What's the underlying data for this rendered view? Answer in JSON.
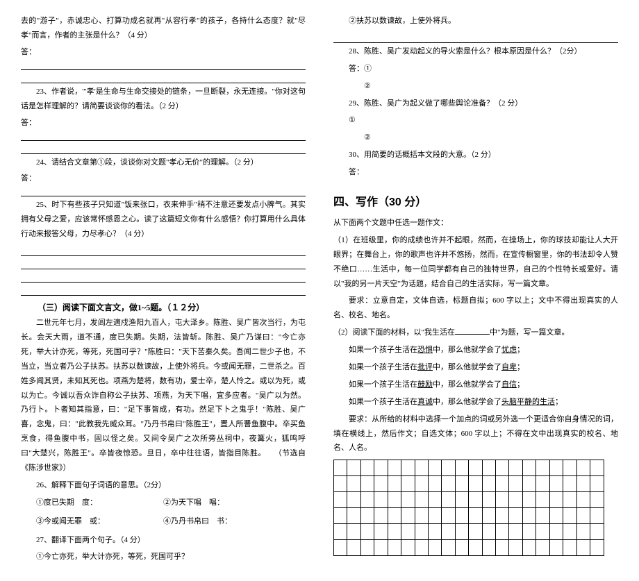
{
  "left": {
    "intro": "去的\"游子\"，赤诚忠心、打算功成名就再\"从容行孝\"的孩子，各持什么态度？就\"尽孝\"而言，作者的主张是什么？（4 分）",
    "ans_label": "答：",
    "q23": "23、作者说，\"'孝'是生命与生命交接处的链条，一旦断裂，永无连接。\"你对这句话是怎样理解的？请简要谈谈你的看法。（2 分）",
    "q24": "24、请结合文章第①段，谈谈你对文题\"孝心无价\"的理解。（2 分）",
    "q25": "25、时下有些孩子只知道\"饭来张口，衣来伸手\"稍不注意还要发点小脾气。其实拥有父母之爱，应该常怀感恩之心。读了这篇短文你有什么感悟？你打算用什么具体行动来报答父母，力尽孝心？（4 分）",
    "sec3_title": "（三）阅读下面文言文，做1~5题。（１２分）",
    "passage": "二世元年七月，发闾左適戍渔阳九百人，屯大泽乡。陈胜、吴广皆次当行，为屯长。会天大雨，道不通，度已失期。失期，法皆斩。陈胜、吴广乃谋曰：\"今亡亦死，举大计亦死，等死，死国可乎？\"陈胜曰：\"天下苦秦久矣。吾闻二世少子也，不当立，当立者乃公子扶苏。扶苏以数谏故，上使外将兵。今或闻无罪，二世杀之。百姓多闻其贤，未知其死也。项燕为楚将，数有功，爱士卒，楚人怜之。或以为死，或以为亡。今诚以吾众诈自称公子扶苏、项燕，为天下唱，宜多应者。\"吴广以为然。乃行卜。卜者知其指意，曰：\"足下事皆成，有功。然足下卜之鬼乎！\"陈胜、吴广喜，念鬼，曰：\"此教我先威众耳。\"乃丹书帛曰\"陈胜王\"，置人所罾鱼腹中。卒买鱼烹食，得鱼腹中书，固以怪之矣。又间令吴广之次所旁丛祠中，夜篝火，狐鸣呼曰\"大楚兴，陈胜王\"。卒皆夜惊恐。旦日，卒中往往语，皆指目陈胜。　　（节选自《陈涉世家》）",
    "q26": "26、解释下面句子词语的意思。（2分）",
    "q26_1": "①度已失期　度：",
    "q26_2": "②为天下唱　唱：",
    "q26_3": "③今或闻无罪　或：",
    "q26_4": "④乃丹书帛曰　书：",
    "q27": "27、翻译下面两个句子。（4 分）",
    "q27_1": "①今亡亦死，举大计亦死，等死，死国可乎？"
  },
  "right": {
    "q27_2": "②扶苏以数谏故，上使外将兵。",
    "q28": "28、陈胜、吴广发动起义的导火索是什么？根本原因是什么？（2分）",
    "q28_a1": "答：① ",
    "q28_a2": "②",
    "q29": "29、陈胜、吴广为起义做了哪些舆论准备？（2 分）",
    "q29_a1": "①",
    "q29_a2": "②",
    "q30": "30、用简要的话概括本文段的大意。（2 分）",
    "q30_a": "答：",
    "big": "四、写作（30 分）",
    "intro": "从下面两个文题中任选一题作文：",
    "opt1": "（1）在班级里，你的成绩也许并不起眼，然而，在操场上，你的球技却能让人大开眼界；在舞台上，你的歌声也许并不悠扬，然而，在宣传橱窗里，你的书法却令人赞不绝口……生活中，每一位同学都有自己的独特世界，自己的个性特长或爱好。请以\"我的另一片天空\"为话题，结合自己的生活实际，写一篇文章。",
    "opt1_req": "要求：立意自定，文体自选，标题自拟；600 字以上；文中不得出现真实的人名、校名、地名。",
    "opt2_title": "（2）阅读下面的材料，以\"我生活在",
    "opt2_title2": "中\"为题，写一篇文章。",
    "m1a": "如果一个孩子生活在",
    "m1b": "恐惧",
    "m1c": "中，那么他就学会了",
    "m1d": "忧虑",
    "m2b": "批评",
    "m2d": "自卑",
    "m3b": "鼓励",
    "m3d": "自信",
    "m4b": "真诚",
    "m4d": "头脑平静的生活",
    "req2": "要求：从所给的材料中选择一个加点的词或另外选一个更适合你自身情况的词，填在横线上，然后作文；自选文体；600 字以上；不得在文中出现真实的校名、地名、人名。",
    "period": "；"
  },
  "grid": {
    "rows": 6,
    "cols": 20
  }
}
